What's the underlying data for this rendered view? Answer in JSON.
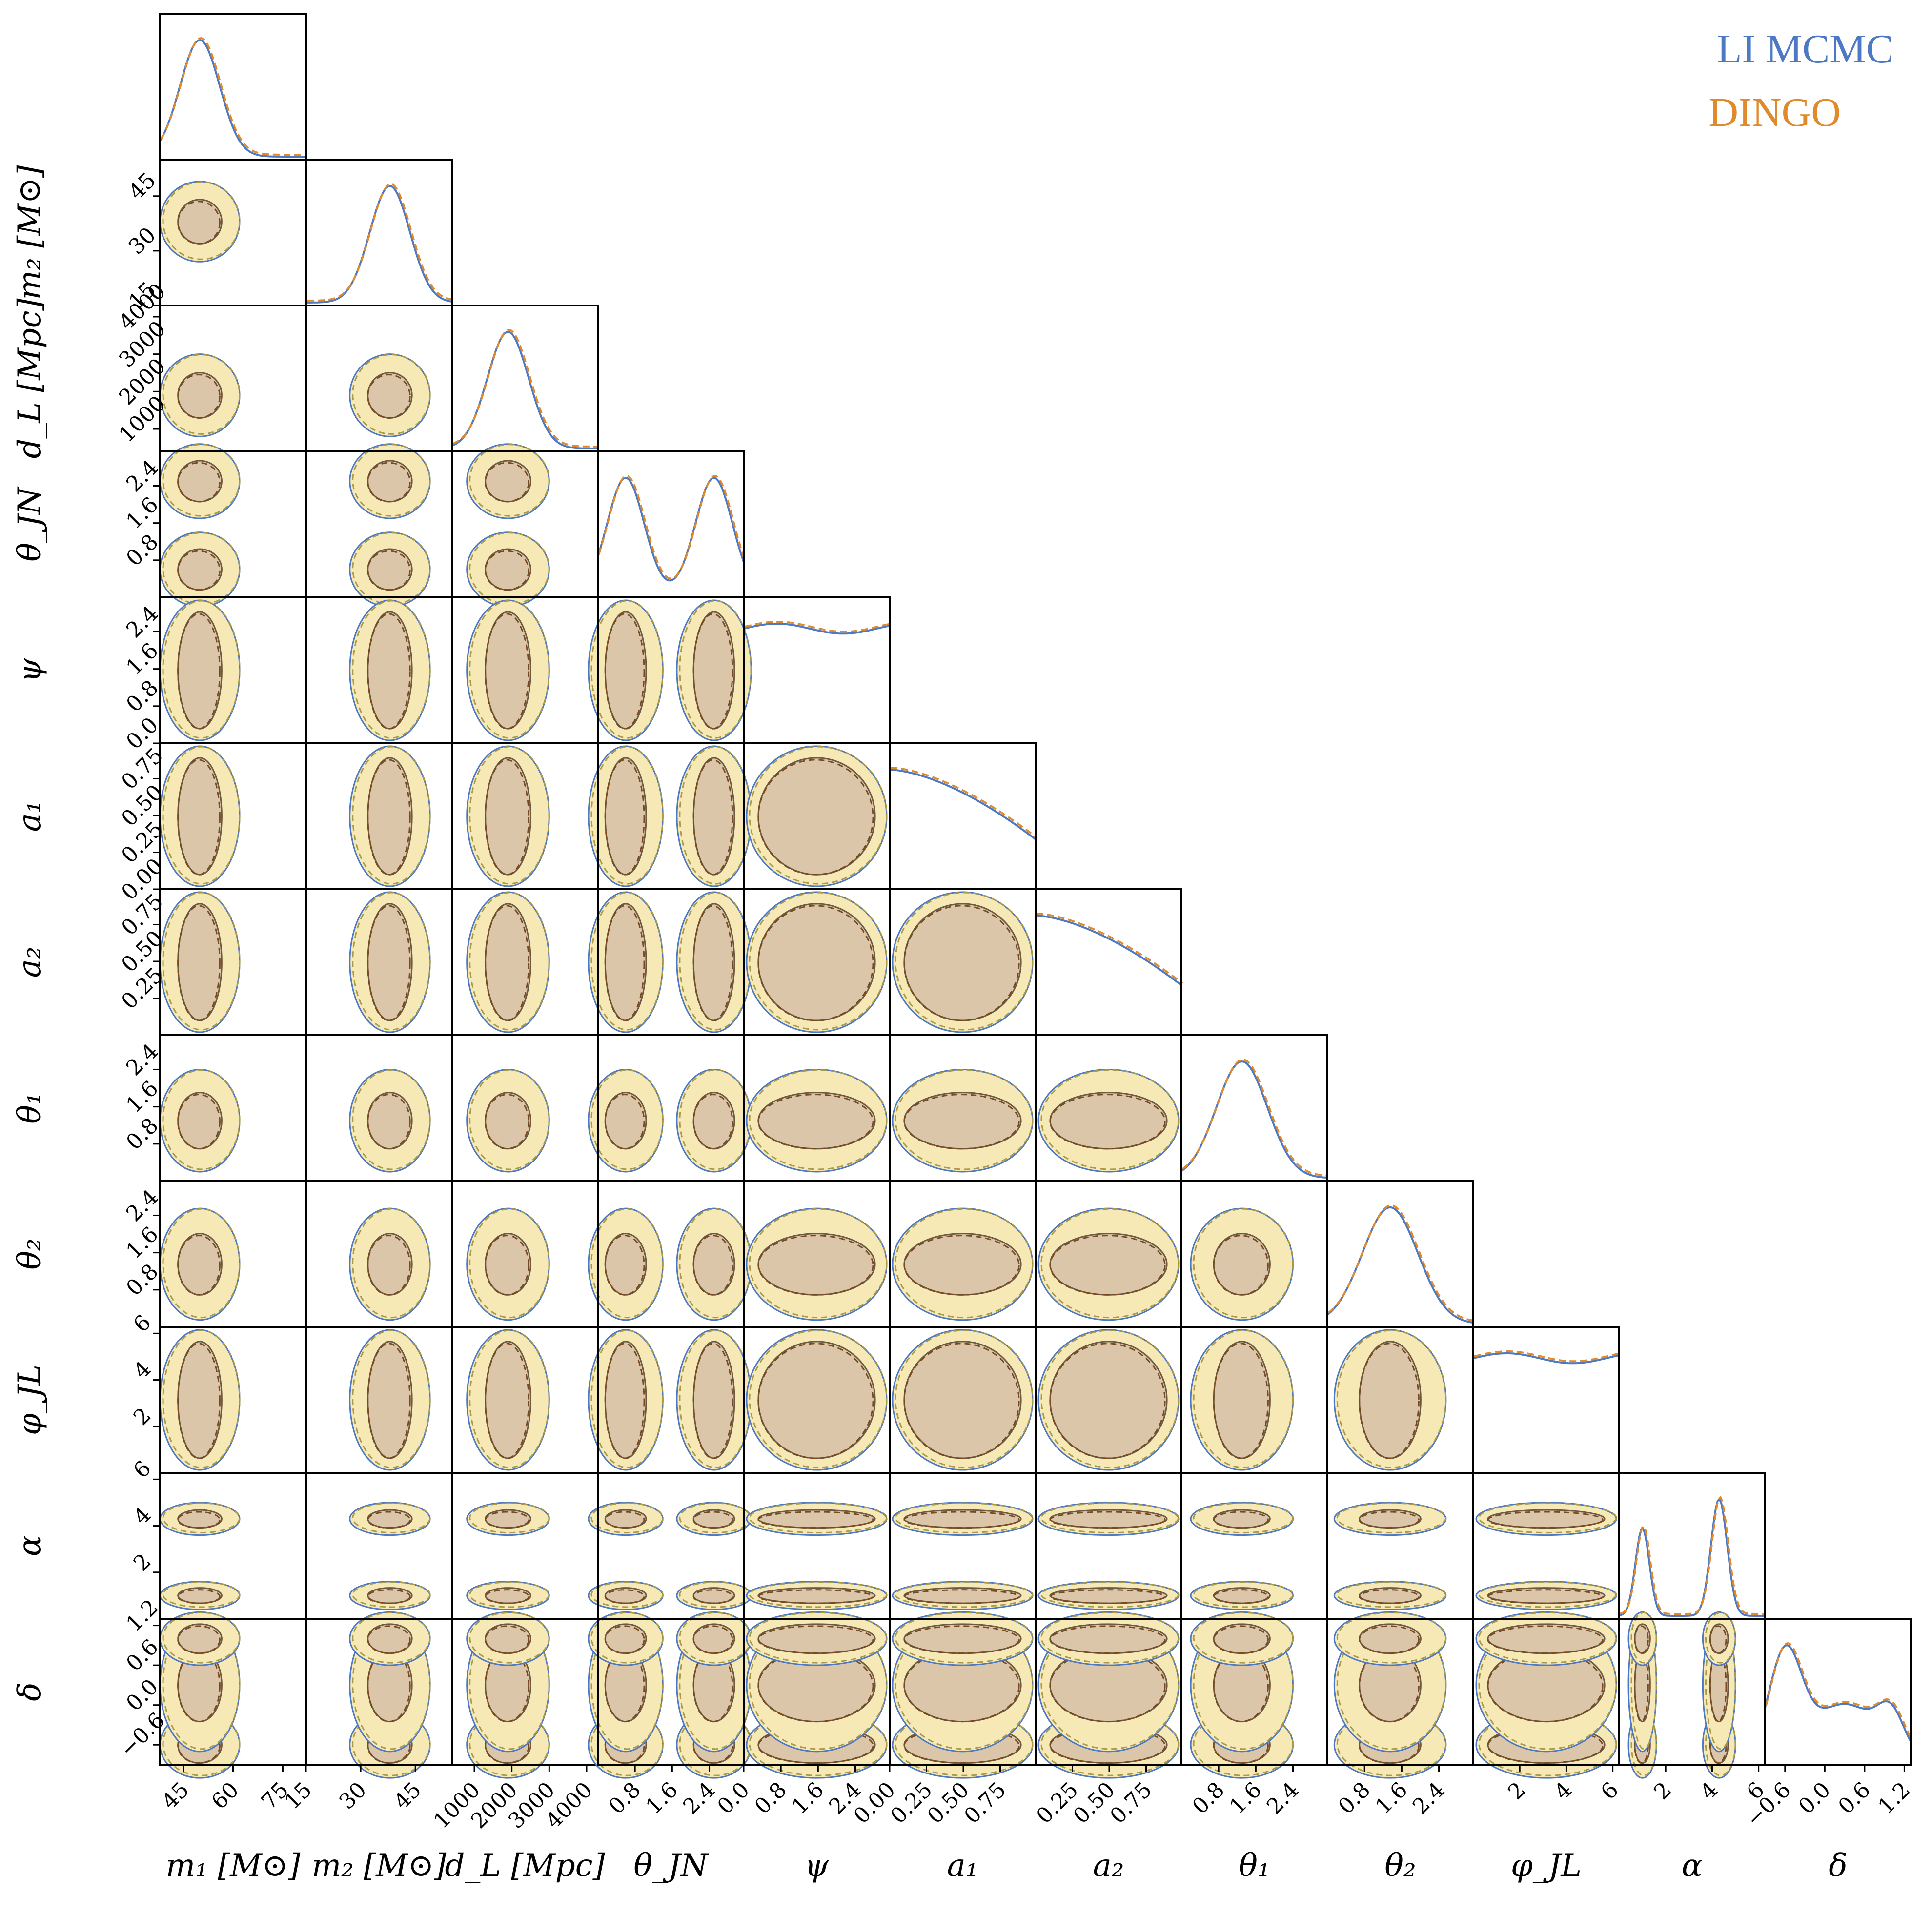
{
  "chart_data": {
    "type": "corner",
    "legend": [
      {
        "label": "LI MCMC",
        "color": "#4c78c4",
        "dash": "solid"
      },
      {
        "label": "DINGO",
        "color": "#e08a2c",
        "dash": "dashed"
      }
    ],
    "fill_colors": {
      "outer": "#f7e9b5",
      "inner": "#dcc6a9",
      "inner_line_mcmc": "#6b5a44",
      "inner_line_dingo": "#7a4a1e"
    },
    "parameters": [
      {
        "key": "m1",
        "label": "m₁ [M⊙]",
        "range": [
          38,
          82
        ],
        "ticks": [
          45,
          60,
          75
        ],
        "tick_labels": [
          "45",
          "60",
          "75"
        ],
        "peaks": [
          {
            "mu": 50,
            "sigma": 6,
            "w": 1
          }
        ]
      },
      {
        "key": "m2",
        "label": "m₂ [M⊙]",
        "range": [
          15,
          55
        ],
        "ticks": [
          15,
          30,
          45
        ],
        "tick_labels": [
          "15",
          "30",
          "45"
        ],
        "peaks": [
          {
            "mu": 38,
            "sigma": 5.5,
            "w": 1
          }
        ]
      },
      {
        "key": "dL",
        "label": "d_L [Mpc]",
        "range": [
          400,
          4300
        ],
        "ticks": [
          1000,
          2000,
          3000,
          4000
        ],
        "tick_labels": [
          "1000",
          "2000",
          "3000",
          "4000"
        ],
        "peaks": [
          {
            "mu": 1900,
            "sigma": 550,
            "w": 1
          }
        ]
      },
      {
        "key": "thetaJN",
        "label": "θ_JN",
        "range": [
          0,
          3.14
        ],
        "ticks": [
          0.8,
          1.6,
          2.4
        ],
        "tick_labels": [
          "0.8",
          "1.6",
          "2.4"
        ],
        "peaks": [
          {
            "mu": 0.6,
            "sigma": 0.4,
            "w": 1
          },
          {
            "mu": 2.5,
            "sigma": 0.4,
            "w": 1
          }
        ]
      },
      {
        "key": "psi",
        "label": "ψ",
        "range": [
          0,
          3.14
        ],
        "ticks": [
          0.0,
          0.8,
          1.6,
          2.4
        ],
        "tick_labels": [
          "0.0",
          "0.8",
          "1.6",
          "2.4"
        ],
        "flat": true
      },
      {
        "key": "a1",
        "label": "a₁",
        "range": [
          0,
          0.99
        ],
        "ticks": [
          0.0,
          0.25,
          0.5,
          0.75
        ],
        "tick_labels": [
          "0.00",
          "0.25",
          "0.50",
          "0.75"
        ],
        "falling": true
      },
      {
        "key": "a2",
        "label": "a₂",
        "range": [
          0,
          0.99
        ],
        "ticks": [
          0.25,
          0.5,
          0.75
        ],
        "tick_labels": [
          "0.25",
          "0.50",
          "0.75"
        ],
        "falling": true
      },
      {
        "key": "theta1",
        "label": "θ₁",
        "range": [
          0,
          3.14
        ],
        "ticks": [
          0.8,
          1.6,
          2.4
        ],
        "tick_labels": [
          "0.8",
          "1.6",
          "2.4"
        ],
        "peaks": [
          {
            "mu": 1.3,
            "sigma": 0.55,
            "w": 1
          }
        ]
      },
      {
        "key": "theta2",
        "label": "θ₂",
        "range": [
          0,
          3.14
        ],
        "ticks": [
          0.8,
          1.6,
          2.4
        ],
        "tick_labels": [
          "0.8",
          "1.6",
          "2.4"
        ],
        "peaks": [
          {
            "mu": 1.35,
            "sigma": 0.6,
            "w": 1
          }
        ]
      },
      {
        "key": "phiJL",
        "label": "φ_JL",
        "range": [
          0,
          6.28
        ],
        "ticks": [
          2,
          4,
          6
        ],
        "tick_labels": [
          "2",
          "4",
          "6"
        ],
        "flat": true
      },
      {
        "key": "alpha",
        "label": "α",
        "range": [
          0,
          6.28
        ],
        "ticks": [
          2,
          4,
          6
        ],
        "tick_labels": [
          "2",
          "4",
          "6"
        ],
        "peaks": [
          {
            "mu": 1.0,
            "sigma": 0.3,
            "w": 0.75
          },
          {
            "mu": 4.3,
            "sigma": 0.35,
            "w": 1
          }
        ]
      },
      {
        "key": "delta",
        "label": "δ",
        "range": [
          -0.9,
          1.3
        ],
        "ticks": [
          -0.6,
          0.0,
          0.6,
          1.2
        ],
        "tick_labels": [
          "−0.6",
          "0.0",
          "0.6",
          "1.2"
        ],
        "peaks": [
          {
            "mu": -0.6,
            "sigma": 0.25,
            "w": 1
          },
          {
            "mu": 0.3,
            "sigma": 0.5,
            "w": 0.55
          },
          {
            "mu": 1.0,
            "sigma": 0.2,
            "w": 0.35
          }
        ]
      }
    ]
  }
}
